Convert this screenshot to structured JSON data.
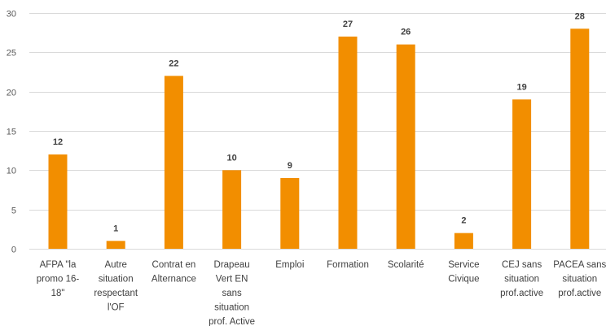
{
  "chart_data": {
    "type": "bar",
    "categories": [
      [
        "AFPA \"la",
        "promo 16-",
        "18\""
      ],
      [
        "Autre",
        "situation",
        "respectant",
        "l'OF"
      ],
      [
        "Contrat en",
        "Alternance"
      ],
      [
        "Drapeau",
        "Vert EN",
        "sans",
        "situation",
        "prof. Active"
      ],
      [
        "Emploi"
      ],
      [
        "Formation"
      ],
      [
        "Scolarité"
      ],
      [
        "Service",
        "Civique"
      ],
      [
        "CEJ sans",
        "situation",
        "prof.active"
      ],
      [
        "PACEA sans",
        "situation",
        "prof.active"
      ]
    ],
    "values": [
      12,
      1,
      22,
      10,
      9,
      27,
      26,
      2,
      19,
      28
    ],
    "ylim": [
      0,
      30
    ],
    "yticks": [
      0,
      5,
      10,
      15,
      20,
      25,
      30
    ],
    "grid": true,
    "bar_color": "#F28E00",
    "grid_color": "#D9D9D9"
  }
}
